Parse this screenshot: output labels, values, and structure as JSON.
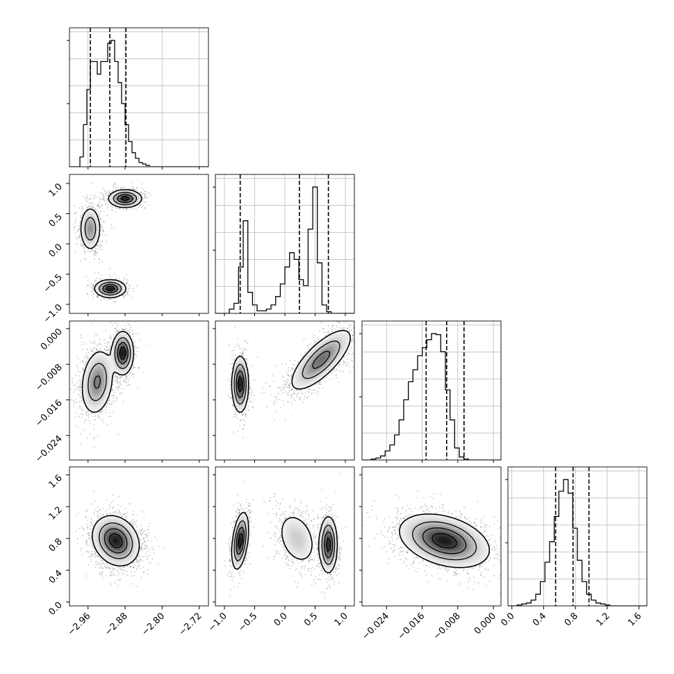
{
  "chart_data": {
    "type": "corner",
    "n_params": 4,
    "grid": true,
    "params": [
      {
        "range": [
          -3.0,
          -2.7
        ],
        "ticks": [
          "−2.96",
          "−2.88",
          "−2.80",
          "−2.72"
        ],
        "tick_values": [
          -2.96,
          -2.88,
          -2.8,
          -2.72
        ],
        "quantiles": [
          -2.955,
          -2.913,
          -2.878
        ]
      },
      {
        "range": [
          -1.15,
          1.15
        ],
        "ticks": [
          "−1.0",
          "−0.5",
          "0.0",
          "0.5",
          "1.0"
        ],
        "tick_values": [
          -1.0,
          -0.5,
          0.0,
          0.5,
          1.0
        ],
        "quantiles": [
          -0.74,
          0.24,
          0.72
        ]
      },
      {
        "range": [
          -0.0295,
          0.0017
        ],
        "ticks": [
          "−0.024",
          "−0.016",
          "−0.008",
          "0.000"
        ],
        "tick_values": [
          -0.024,
          -0.016,
          -0.008,
          0.0
        ],
        "quantiles": [
          -0.0151,
          -0.0105,
          -0.0066
        ]
      },
      {
        "range": [
          -0.05,
          1.7
        ],
        "ticks": [
          "0.0",
          "0.4",
          "0.8",
          "1.2",
          "1.6"
        ],
        "tick_values": [
          0.0,
          0.4,
          0.8,
          1.2,
          1.6
        ],
        "quantiles": [
          0.55,
          0.77,
          0.97
        ]
      }
    ],
    "histograms": [
      {
        "param": 0,
        "edges_start": -3.0,
        "bin_width": 0.0075,
        "counts": [
          0,
          0,
          0,
          7,
          30,
          55,
          75,
          75,
          66,
          75,
          75,
          88,
          90,
          75,
          60,
          45,
          30,
          18,
          10,
          6,
          3,
          2,
          1,
          0,
          0,
          0,
          0,
          0,
          0,
          0,
          0,
          0,
          0,
          0,
          0,
          0,
          0,
          0,
          0,
          0
        ]
      },
      {
        "param": 1,
        "edges_start": -1.15,
        "bin_width": 0.0767,
        "counts": [
          0,
          0,
          0,
          5,
          12,
          55,
          110,
          25,
          10,
          3,
          3,
          5,
          10,
          20,
          35,
          55,
          72,
          64,
          40,
          33,
          100,
          150,
          60,
          10,
          2,
          0,
          0,
          0,
          0,
          0
        ]
      },
      {
        "param": 2,
        "edges_start": -0.0295,
        "bin_width": 0.00104,
        "counts": [
          0,
          0,
          1,
          2,
          4,
          9,
          15,
          25,
          40,
          60,
          78,
          90,
          104,
          112,
          120,
          126,
          125,
          108,
          70,
          40,
          12,
          3,
          1,
          0,
          0,
          0,
          0,
          0,
          0,
          0
        ]
      },
      {
        "param": 3,
        "edges_start": -0.05,
        "bin_width": 0.0583,
        "counts": [
          0,
          0,
          1,
          2,
          3,
          6,
          12,
          25,
          45,
          66,
          92,
          118,
          130,
          116,
          80,
          47,
          25,
          12,
          6,
          3,
          2,
          1,
          0,
          0,
          0,
          0,
          0,
          0,
          0,
          0
        ]
      }
    ],
    "density_modes": [
      {
        "x": 0,
        "y": 1,
        "modes": [
          {
            "x": -2.88,
            "y": 0.75,
            "sx": 0.017,
            "sy": 0.07,
            "w": 0.34,
            "r": 0
          },
          {
            "x": -2.955,
            "y": 0.25,
            "sx": 0.011,
            "sy": 0.18,
            "w": 0.33,
            "r": 0
          },
          {
            "x": -2.912,
            "y": -0.74,
            "sx": 0.016,
            "sy": 0.07,
            "w": 0.33,
            "r": 0
          }
        ]
      },
      {
        "x": 0,
        "y": 2,
        "modes": [
          {
            "x": -2.885,
            "y": -0.0055,
            "sx": 0.011,
            "sy": 0.0023,
            "w": 0.4,
            "r": 0
          },
          {
            "x": -2.94,
            "y": -0.012,
            "sx": 0.017,
            "sy": 0.0036,
            "w": 0.6,
            "r": 0.2
          }
        ]
      },
      {
        "x": 0,
        "y": 3,
        "modes": [
          {
            "x": -2.9,
            "y": 0.77,
            "sx": 0.024,
            "sy": 0.15,
            "w": 1.0,
            "r": -0.2
          }
        ]
      },
      {
        "x": 1,
        "y": 2,
        "modes": [
          {
            "x": -0.74,
            "y": -0.0125,
            "sx": 0.065,
            "sy": 0.003,
            "w": 0.33,
            "r": 0
          },
          {
            "x": 0.6,
            "y": -0.007,
            "sx": 0.25,
            "sy": 0.0034,
            "w": 0.67,
            "r": 0.75
          }
        ]
      },
      {
        "x": 1,
        "y": 3,
        "modes": [
          {
            "x": -0.74,
            "y": 0.77,
            "sx": 0.065,
            "sy": 0.17,
            "w": 0.33,
            "r": 0.4
          },
          {
            "x": 0.2,
            "y": 0.8,
            "sx": 0.17,
            "sy": 0.18,
            "w": 0.3,
            "r": -0.3
          },
          {
            "x": 0.72,
            "y": 0.72,
            "sx": 0.07,
            "sy": 0.17,
            "w": 0.37,
            "r": 0
          }
        ]
      },
      {
        "x": 2,
        "y": 3,
        "modes": [
          {
            "x": -0.011,
            "y": 0.77,
            "sx": 0.0048,
            "sy": 0.16,
            "w": 1.0,
            "r": -0.35
          }
        ]
      }
    ]
  }
}
